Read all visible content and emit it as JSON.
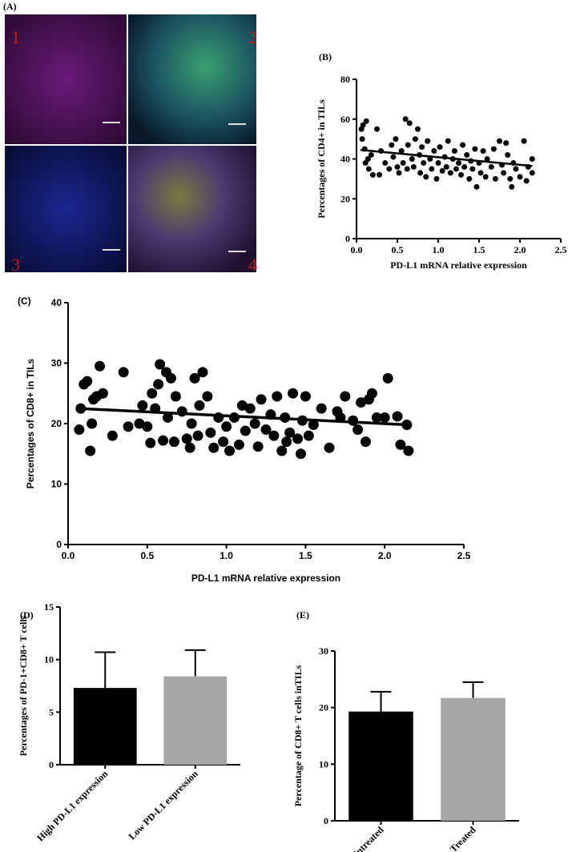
{
  "panel_a": {
    "label": "(A)",
    "numbers": [
      "1",
      "2",
      "3",
      "4"
    ]
  },
  "chart_data": [
    {
      "type": "scatter",
      "panel": "(B)",
      "y_label": "Percentages of CD4+ in TILs",
      "x_label": "PD-L1 mRNA relative expression",
      "color": "#000000",
      "xlim": [
        0,
        2.5
      ],
      "xticks": [
        {
          "value": 0,
          "label": "0.0"
        },
        0.5,
        {
          "value": 1,
          "label": "1.0"
        },
        1.5,
        {
          "value": 2,
          "label": "2.0"
        },
        2.5
      ],
      "ylim": [
        0,
        80
      ],
      "yticks": [
        0,
        20,
        40,
        60,
        80
      ],
      "x": [
        0.06,
        0.07,
        0.08,
        0.1,
        0.11,
        0.12,
        0.14,
        0.15,
        0.18,
        0.2,
        0.25,
        0.28,
        0.3,
        0.35,
        0.4,
        0.43,
        0.45,
        0.48,
        0.5,
        0.52,
        0.55,
        0.57,
        0.6,
        0.62,
        0.63,
        0.65,
        0.68,
        0.7,
        0.72,
        0.75,
        0.77,
        0.78,
        0.8,
        0.82,
        0.85,
        0.87,
        0.9,
        0.92,
        0.95,
        0.98,
        1.0,
        1.02,
        1.05,
        1.08,
        1.1,
        1.12,
        1.15,
        1.18,
        1.2,
        1.22,
        1.25,
        1.28,
        1.3,
        1.32,
        1.35,
        1.38,
        1.4,
        1.42,
        1.45,
        1.47,
        1.5,
        1.52,
        1.55,
        1.58,
        1.6,
        1.65,
        1.68,
        1.7,
        1.75,
        1.78,
        1.8,
        1.83,
        1.85,
        1.88,
        1.9,
        1.92,
        1.95,
        2.0,
        2.05,
        2.08,
        2.1,
        2.15,
        2.15
      ],
      "y": [
        55,
        50,
        57,
        45,
        38,
        59,
        40,
        35,
        42,
        32,
        55,
        32,
        44,
        38,
        35,
        47,
        41,
        50,
        36,
        33,
        44,
        38,
        60,
        35,
        47,
        58,
        40,
        36,
        50,
        55,
        42,
        33,
        46,
        38,
        31,
        49,
        40,
        35,
        44,
        30,
        38,
        46,
        34,
        41,
        36,
        49,
        33,
        40,
        44,
        35,
        38,
        32,
        47,
        36,
        42,
        30,
        39,
        35,
        45,
        26,
        38,
        33,
        44,
        31,
        40,
        36,
        45,
        30,
        49,
        37,
        33,
        48,
        42,
        30,
        26,
        38,
        35,
        31,
        49,
        29,
        36,
        40,
        33
      ],
      "fit": {
        "x": [
          0.05,
          2.15
        ],
        "y": [
          44.5,
          36.5
        ]
      }
    },
    {
      "type": "scatter",
      "panel": "(C)",
      "y_label": "Percentages of CD8+ in TILs",
      "x_label": "PD-L1 mRNA relative expression",
      "color": "#000000",
      "xlim": [
        0,
        2.5
      ],
      "xticks": [
        {
          "value": 0,
          "label": "0.0"
        },
        0.5,
        {
          "value": 1,
          "label": "1.0"
        },
        1.5,
        {
          "value": 2,
          "label": "2.0"
        },
        2.5
      ],
      "ylim": [
        0,
        40
      ],
      "yticks": [
        0,
        10,
        20,
        30,
        40
      ],
      "x": [
        0.07,
        0.08,
        0.1,
        0.12,
        0.14,
        0.15,
        0.16,
        0.18,
        0.2,
        0.22,
        0.28,
        0.35,
        0.38,
        0.45,
        0.47,
        0.5,
        0.52,
        0.53,
        0.55,
        0.57,
        0.58,
        0.6,
        0.62,
        0.63,
        0.65,
        0.67,
        0.68,
        0.72,
        0.75,
        0.77,
        0.78,
        0.8,
        0.82,
        0.83,
        0.85,
        0.88,
        0.9,
        0.92,
        0.95,
        0.98,
        1.0,
        1.02,
        1.05,
        1.08,
        1.1,
        1.12,
        1.15,
        1.18,
        1.2,
        1.22,
        1.25,
        1.28,
        1.3,
        1.32,
        1.35,
        1.37,
        1.38,
        1.4,
        1.42,
        1.45,
        1.47,
        1.48,
        1.5,
        1.52,
        1.55,
        1.6,
        1.65,
        1.7,
        1.72,
        1.75,
        1.8,
        1.83,
        1.85,
        1.88,
        1.9,
        1.92,
        1.95,
        2.0,
        2.02,
        2.08,
        2.1,
        2.15,
        2.14
      ],
      "y": [
        19,
        22.5,
        26.5,
        27,
        15.5,
        20,
        24,
        24.5,
        29.5,
        25,
        18,
        28.5,
        19.5,
        20,
        23,
        19.5,
        16.8,
        25,
        22.5,
        26.5,
        29.8,
        17.2,
        28.5,
        21,
        27.5,
        17,
        24.5,
        22,
        17.5,
        16,
        20,
        27.5,
        18,
        23,
        28.5,
        24.5,
        18.5,
        16,
        21,
        17,
        19.5,
        15.5,
        21,
        16.5,
        23,
        18.8,
        22.5,
        20,
        16.2,
        24,
        19,
        21.5,
        18,
        24.5,
        15.5,
        21,
        17,
        18.5,
        25,
        17.5,
        15,
        20.5,
        24.5,
        18,
        19.8,
        22.5,
        16,
        22,
        21,
        24.5,
        20.5,
        19,
        23.5,
        17,
        24,
        25,
        21,
        21,
        27.5,
        21.2,
        16.5,
        15.5,
        19.8
      ],
      "fit": {
        "x": [
          0.07,
          2.15
        ],
        "y": [
          22.5,
          19.8
        ]
      }
    },
    {
      "type": "bar",
      "panel": "(D)",
      "y_label": "Percentages of PD-1+CD8+ T cells",
      "categories": [
        "High PD-L1 expression",
        "Low PD-L1 expression"
      ],
      "values": [
        7.3,
        8.4
      ],
      "errors": [
        3.4,
        2.5
      ],
      "colors": [
        "#000000",
        "#a6a6a6"
      ],
      "ylim": [
        0,
        15
      ],
      "yticks": [
        0,
        5,
        10,
        15
      ]
    },
    {
      "type": "bar",
      "panel": "(E)",
      "y_label": "Percentage of CD8+ T cells inTILs",
      "categories": [
        "Untreated",
        "Treated"
      ],
      "values": [
        19.3,
        21.7
      ],
      "errors": [
        3.5,
        2.8
      ],
      "colors": [
        "#000000",
        "#a6a6a6"
      ],
      "ylim": [
        0,
        30
      ],
      "yticks": [
        0,
        10,
        20,
        30
      ]
    }
  ]
}
